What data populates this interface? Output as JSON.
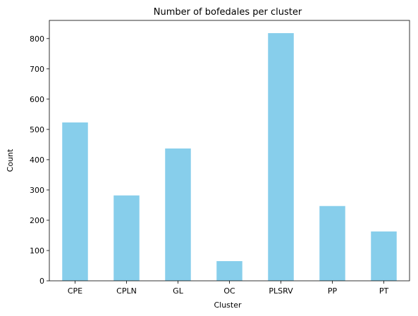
{
  "chart_data": {
    "type": "bar",
    "title": "Number of bofedales per cluster",
    "xlabel": "Cluster",
    "ylabel": "Count",
    "categories": [
      "CPE",
      "CPLN",
      "GL",
      "OC",
      "PLSRV",
      "PP",
      "PT"
    ],
    "values": [
      523,
      282,
      437,
      65,
      818,
      247,
      163
    ],
    "ylim": [
      0,
      860
    ],
    "yticks": [
      0,
      100,
      200,
      300,
      400,
      500,
      600,
      700,
      800
    ],
    "grid": false,
    "legend": "none",
    "bar_color": "#87CEEB"
  }
}
